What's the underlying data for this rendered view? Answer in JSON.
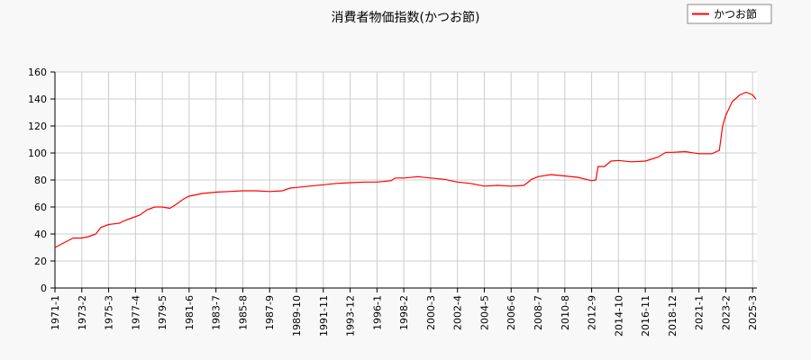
{
  "chart_data": {
    "type": "line",
    "title": "消費者物価指数(かつお節)",
    "xlabel": "",
    "ylabel": "",
    "ylim": [
      0,
      160
    ],
    "y_ticks": [
      0,
      20,
      40,
      60,
      80,
      100,
      120,
      140,
      160
    ],
    "grid": true,
    "legend_position": "top-right",
    "x_tick_labels": [
      "1971-1",
      "1973-2",
      "1975-3",
      "1977-4",
      "1979-5",
      "1981-6",
      "1983-7",
      "1985-8",
      "1987-9",
      "1989-10",
      "1991-11",
      "1993-12",
      "1996-1",
      "1998-2",
      "2000-3",
      "2002-4",
      "2004-5",
      "2006-6",
      "2008-7",
      "2010-8",
      "2012-9",
      "2014-10",
      "2016-11",
      "2018-12",
      "2021-1",
      "2023-2",
      "2025-3"
    ],
    "series": [
      {
        "name": "かつお節",
        "color": "#ff0000",
        "points": [
          [
            "1971-1",
            30
          ],
          [
            "1972-1",
            35
          ],
          [
            "1972-6",
            37
          ],
          [
            "1973-2",
            37
          ],
          [
            "1973-8",
            38
          ],
          [
            "1974-3",
            40
          ],
          [
            "1974-8",
            45
          ],
          [
            "1975-3",
            47
          ],
          [
            "1976-1",
            48
          ],
          [
            "1976-6",
            50
          ],
          [
            "1977-1",
            52
          ],
          [
            "1977-8",
            54
          ],
          [
            "1978-3",
            58
          ],
          [
            "1978-10",
            60
          ],
          [
            "1979-5",
            60
          ],
          [
            "1979-12",
            59
          ],
          [
            "1980-6",
            62
          ],
          [
            "1981-1",
            66
          ],
          [
            "1981-6",
            68
          ],
          [
            "1982-6",
            70
          ],
          [
            "1983-7",
            71
          ],
          [
            "1984-7",
            71.5
          ],
          [
            "1985-8",
            72
          ],
          [
            "1986-8",
            72
          ],
          [
            "1987-9",
            71.5
          ],
          [
            "1988-9",
            72
          ],
          [
            "1989-4",
            74
          ],
          [
            "1989-10",
            74.5
          ],
          [
            "1990-10",
            75.5
          ],
          [
            "1991-11",
            76.5
          ],
          [
            "1992-11",
            77.5
          ],
          [
            "1993-12",
            78
          ],
          [
            "1995-1",
            78.5
          ],
          [
            "1996-1",
            78.5
          ],
          [
            "1997-2",
            79.5
          ],
          [
            "1997-6",
            81.5
          ],
          [
            "1998-2",
            81.5
          ],
          [
            "1999-3",
            82.5
          ],
          [
            "2000-3",
            81.5
          ],
          [
            "2001-4",
            80.5
          ],
          [
            "2002-4",
            78.5
          ],
          [
            "2003-4",
            77.5
          ],
          [
            "2004-5",
            75.5
          ],
          [
            "2005-5",
            76
          ],
          [
            "2006-6",
            75.5
          ],
          [
            "2007-6",
            76
          ],
          [
            "2008-1",
            80.5
          ],
          [
            "2008-7",
            82.5
          ],
          [
            "2009-7",
            84
          ],
          [
            "2010-8",
            83
          ],
          [
            "2011-8",
            82
          ],
          [
            "2012-9",
            79.5
          ],
          [
            "2013-1",
            80
          ],
          [
            "2013-3",
            90
          ],
          [
            "2013-9",
            90
          ],
          [
            "2014-3",
            94
          ],
          [
            "2014-10",
            94.5
          ],
          [
            "2015-10",
            93.5
          ],
          [
            "2016-11",
            94
          ],
          [
            "2017-11",
            97
          ],
          [
            "2018-6",
            100.5
          ],
          [
            "2018-12",
            100.5
          ],
          [
            "2019-12",
            101
          ],
          [
            "2021-1",
            99.5
          ],
          [
            "2022-1",
            99.5
          ],
          [
            "2022-8",
            102
          ],
          [
            "2022-11",
            120
          ],
          [
            "2023-2",
            128
          ],
          [
            "2023-8",
            138
          ],
          [
            "2024-3",
            143
          ],
          [
            "2024-9",
            145
          ],
          [
            "2025-3",
            143
          ],
          [
            "2025-6",
            140
          ]
        ]
      }
    ]
  }
}
